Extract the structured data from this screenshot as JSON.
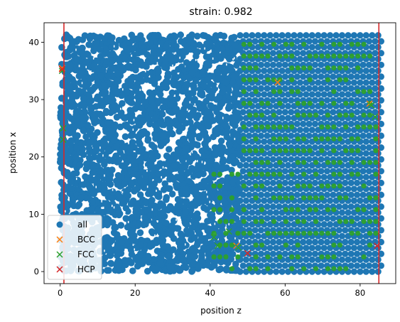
{
  "chart_data": {
    "type": "scatter",
    "title": "strain: 0.982",
    "xlabel": "position z",
    "ylabel": "position x",
    "xlim": [
      -4.3,
      89.5
    ],
    "ylim": [
      -2.1,
      43.4
    ],
    "xticks": [
      0,
      20,
      40,
      60,
      80
    ],
    "yticks": [
      0,
      10,
      20,
      30,
      40
    ],
    "grid": false,
    "legend_position": "lower-left",
    "boundaries": {
      "color": "#d62728",
      "x": [
        1.0,
        85.0
      ]
    },
    "series": [
      {
        "name": "all",
        "marker": "o",
        "color": "#1f77b4",
        "description_values": {
          "z_range": [
            0,
            86
          ],
          "x_range": [
            0,
            41.3
          ],
          "disordered_region_z": [
            0,
            48
          ],
          "crystalline_region_z": [
            48,
            86
          ]
        }
      },
      {
        "name": "BCC",
        "marker": "x",
        "color": "#ff7f0e",
        "points": [
          [
            0.5,
            35.5
          ],
          [
            58,
            33
          ],
          [
            82.5,
            29.3
          ],
          [
            47,
            4.5
          ]
        ]
      },
      {
        "name": "FCC",
        "marker": "x",
        "color": "#2ca02c",
        "points": [
          [
            0.5,
            35
          ],
          [
            0.8,
            25
          ],
          [
            0.8,
            23
          ],
          [
            83,
            29
          ],
          [
            84,
            27
          ],
          [
            42,
            4.5
          ],
          [
            47.5,
            4.2
          ],
          [
            41,
            6
          ],
          [
            45,
            7
          ]
        ]
      },
      {
        "name": "HCP",
        "marker": "x",
        "color": "#d62728",
        "points": [
          [
            0.5,
            35.3
          ],
          [
            50,
            3.2
          ],
          [
            84.5,
            4.5
          ]
        ]
      }
    ]
  }
}
